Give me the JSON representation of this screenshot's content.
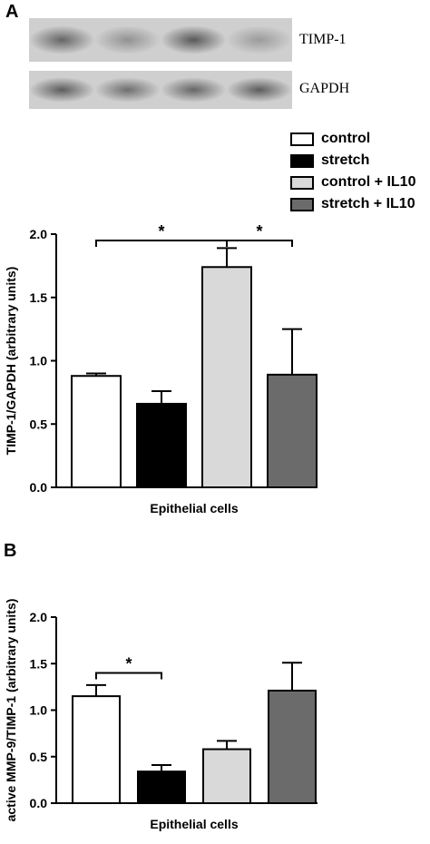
{
  "panel_a": {
    "letter": "A",
    "blots": [
      {
        "label": "TIMP-1",
        "intensities": [
          0.55,
          0.3,
          0.62,
          0.25
        ]
      },
      {
        "label": "GAPDH",
        "intensities": [
          0.6,
          0.5,
          0.55,
          0.6
        ]
      }
    ],
    "legend": [
      {
        "label": "control",
        "color": "#ffffff"
      },
      {
        "label": "stretch",
        "color": "#000000"
      },
      {
        "label": "control + IL10",
        "color": "#d9d9d9"
      },
      {
        "label": "stretch + IL10",
        "color": "#6b6b6b"
      }
    ]
  },
  "panel_b": {
    "letter": "B"
  },
  "chart_data": [
    {
      "type": "bar",
      "categories": [
        "control",
        "stretch",
        "control + IL10",
        "stretch + IL10"
      ],
      "values": [
        0.88,
        0.66,
        1.74,
        0.89
      ],
      "errors": [
        0.02,
        0.1,
        0.15,
        0.36
      ],
      "colors": [
        "#ffffff",
        "#000000",
        "#d9d9d9",
        "#6b6b6b"
      ],
      "xlabel": "Epithelial cells",
      "ylabel": "TIMP-1/GAPDH (arbitrary units)",
      "ylim": [
        0,
        2.0
      ],
      "yticks": [
        "0.0",
        "0.5",
        "1.0",
        "1.5",
        "2.0"
      ],
      "significance": [
        {
          "from": 0,
          "to": 2,
          "y": 1.95,
          "label": "*"
        },
        {
          "from": 2,
          "to": 3,
          "y": 1.95,
          "label": "*"
        }
      ]
    },
    {
      "type": "bar",
      "categories": [
        "control",
        "stretch",
        "control + IL10",
        "stretch + IL10"
      ],
      "values": [
        1.15,
        0.34,
        0.58,
        1.21
      ],
      "errors": [
        0.12,
        0.07,
        0.09,
        0.3
      ],
      "colors": [
        "#ffffff",
        "#000000",
        "#d9d9d9",
        "#6b6b6b"
      ],
      "xlabel": "Epithelial cells",
      "ylabel": "active MMP-9/TIMP-1 (arbitrary units)",
      "ylim": [
        0,
        2.0
      ],
      "yticks": [
        "0.0",
        "0.5",
        "1.0",
        "1.5",
        "2.0"
      ],
      "significance": [
        {
          "from": 0,
          "to": 1,
          "y": 1.4,
          "label": "*"
        }
      ]
    }
  ]
}
